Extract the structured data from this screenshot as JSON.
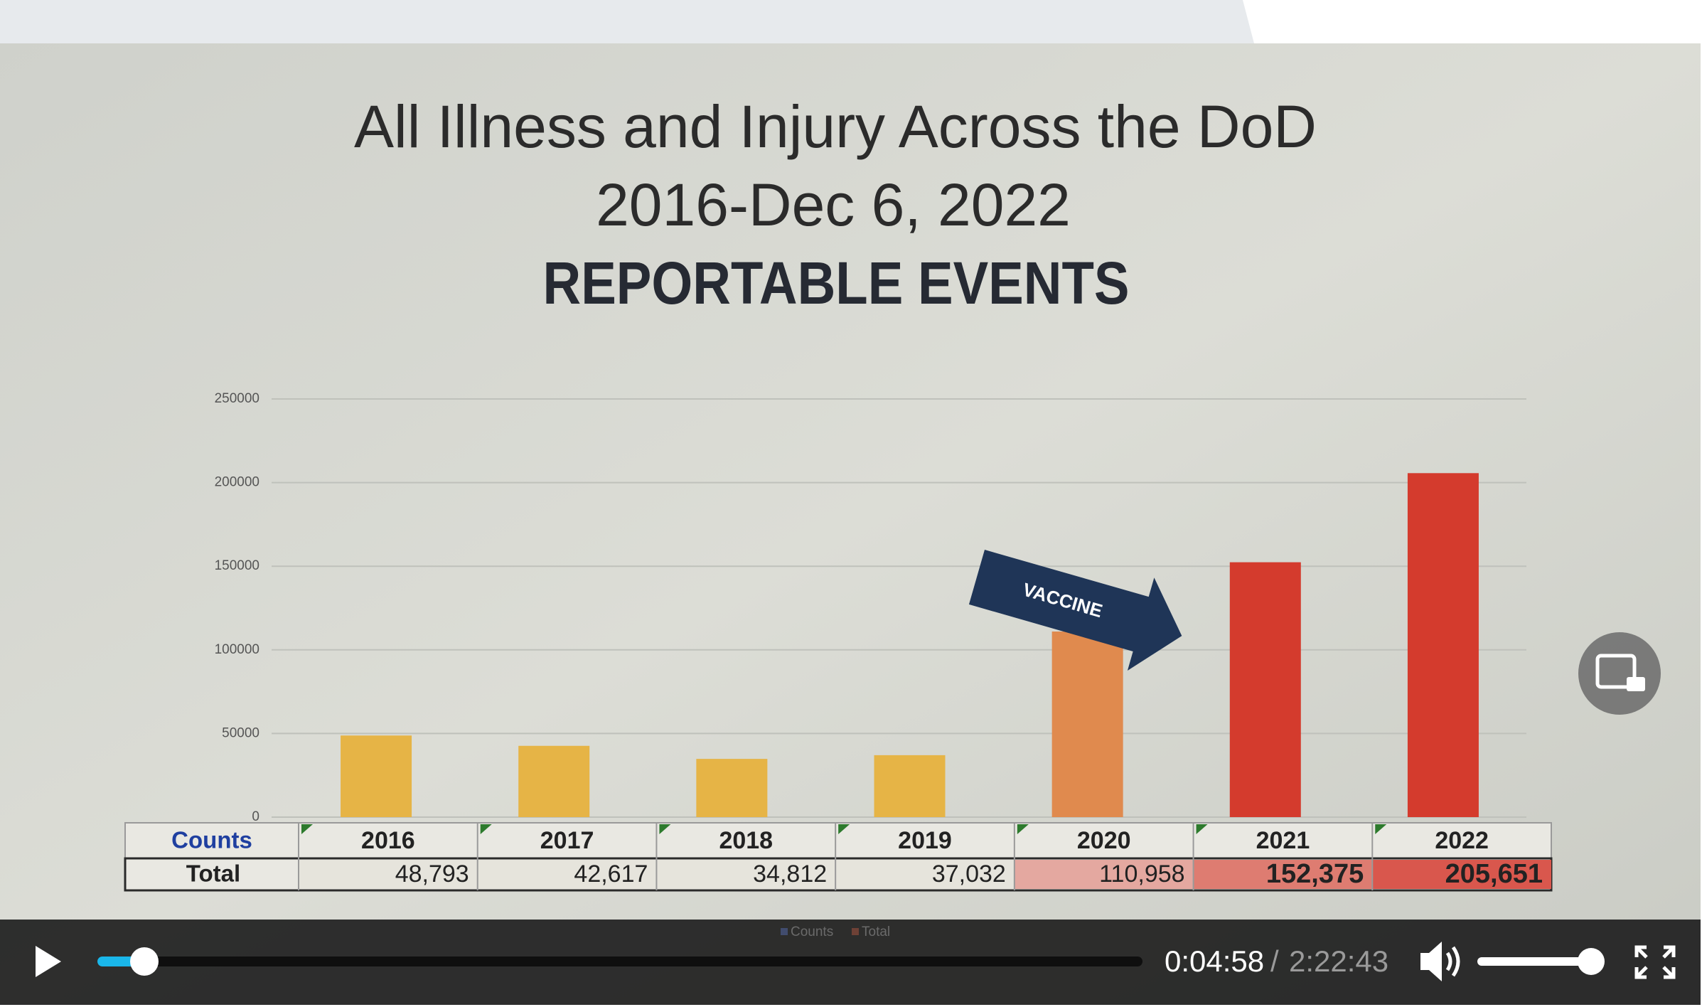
{
  "chart_data": {
    "type": "bar",
    "title": "All Illness and Injury Across the DoD",
    "subtitle": "2016-Dec 6, 2022",
    "heading": "REPORTABLE EVENTS",
    "categories": [
      "2016",
      "2017",
      "2018",
      "2019",
      "2020",
      "2021",
      "2022"
    ],
    "series": [
      {
        "name": "Total",
        "colors": [
          "#e6b446",
          "#e6b446",
          "#e6b446",
          "#e6b446",
          "#e08a4e",
          "#d43b2d",
          "#d43b2d"
        ],
        "values": [
          48793,
          42617,
          34812,
          37032,
          110958,
          152375,
          205651
        ],
        "value_labels": [
          "48,793",
          "42,617",
          "34,812",
          "37,032",
          "110,958",
          "152,375",
          "205,651"
        ]
      }
    ],
    "table_header": "Counts",
    "legend": [
      "Counts",
      "Total"
    ],
    "annotation": "VACCINE",
    "ylim": [
      0,
      250000
    ],
    "yticks": [
      0,
      50000,
      100000,
      150000,
      200000,
      250000
    ],
    "grid": true
  },
  "player": {
    "current_time": "0:04:58",
    "separator": "/",
    "duration": "2:22:43"
  }
}
